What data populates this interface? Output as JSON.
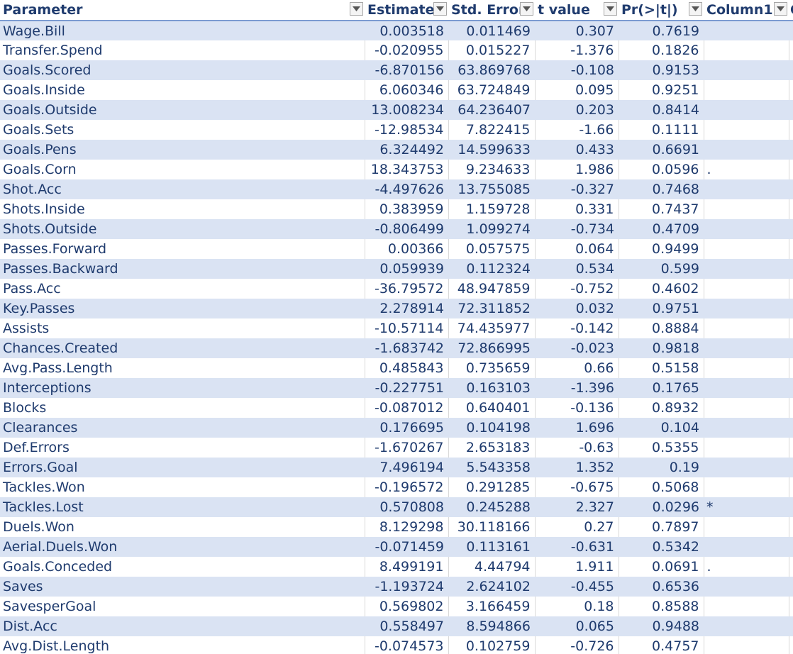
{
  "headers": [
    "Parameter",
    "Estimate",
    "Std. Error",
    "t value",
    "Pr(>|t|)",
    "Column1",
    "C"
  ],
  "rows": [
    {
      "parameter": "Wage.Bill",
      "estimate": "0.003518",
      "std_error": "0.011469",
      "t_value": "0.307",
      "p_value": "0.7619",
      "column1": ""
    },
    {
      "parameter": "Transfer.Spend",
      "estimate": "-0.020955",
      "std_error": "0.015227",
      "t_value": "-1.376",
      "p_value": "0.1826",
      "column1": ""
    },
    {
      "parameter": "Goals.Scored",
      "estimate": "-6.870156",
      "std_error": "63.869768",
      "t_value": "-0.108",
      "p_value": "0.9153",
      "column1": ""
    },
    {
      "parameter": "Goals.Inside",
      "estimate": "6.060346",
      "std_error": "63.724849",
      "t_value": "0.095",
      "p_value": "0.9251",
      "column1": ""
    },
    {
      "parameter": "Goals.Outside",
      "estimate": "13.008234",
      "std_error": "64.236407",
      "t_value": "0.203",
      "p_value": "0.8414",
      "column1": ""
    },
    {
      "parameter": "Goals.Sets",
      "estimate": "-12.98534",
      "std_error": "7.822415",
      "t_value": "-1.66",
      "p_value": "0.1111",
      "column1": ""
    },
    {
      "parameter": "Goals.Pens",
      "estimate": "6.324492",
      "std_error": "14.599633",
      "t_value": "0.433",
      "p_value": "0.6691",
      "column1": ""
    },
    {
      "parameter": "Goals.Corn",
      "estimate": "18.343753",
      "std_error": "9.234633",
      "t_value": "1.986",
      "p_value": "0.0596",
      "column1": "."
    },
    {
      "parameter": "Shot.Acc",
      "estimate": "-4.497626",
      "std_error": "13.755085",
      "t_value": "-0.327",
      "p_value": "0.7468",
      "column1": ""
    },
    {
      "parameter": "Shots.Inside",
      "estimate": "0.383959",
      "std_error": "1.159728",
      "t_value": "0.331",
      "p_value": "0.7437",
      "column1": ""
    },
    {
      "parameter": "Shots.Outside",
      "estimate": "-0.806499",
      "std_error": "1.099274",
      "t_value": "-0.734",
      "p_value": "0.4709",
      "column1": ""
    },
    {
      "parameter": "Passes.Forward",
      "estimate": "0.00366",
      "std_error": "0.057575",
      "t_value": "0.064",
      "p_value": "0.9499",
      "column1": ""
    },
    {
      "parameter": "Passes.Backward",
      "estimate": "0.059939",
      "std_error": "0.112324",
      "t_value": "0.534",
      "p_value": "0.599",
      "column1": ""
    },
    {
      "parameter": "Pass.Acc",
      "estimate": "-36.79572",
      "std_error": "48.947859",
      "t_value": "-0.752",
      "p_value": "0.4602",
      "column1": ""
    },
    {
      "parameter": "Key.Passes",
      "estimate": "2.278914",
      "std_error": "72.311852",
      "t_value": "0.032",
      "p_value": "0.9751",
      "column1": ""
    },
    {
      "parameter": "Assists",
      "estimate": "-10.57114",
      "std_error": "74.435977",
      "t_value": "-0.142",
      "p_value": "0.8884",
      "column1": ""
    },
    {
      "parameter": "Chances.Created",
      "estimate": "-1.683742",
      "std_error": "72.866995",
      "t_value": "-0.023",
      "p_value": "0.9818",
      "column1": ""
    },
    {
      "parameter": "Avg.Pass.Length",
      "estimate": "0.485843",
      "std_error": "0.735659",
      "t_value": "0.66",
      "p_value": "0.5158",
      "column1": ""
    },
    {
      "parameter": "Interceptions",
      "estimate": "-0.227751",
      "std_error": "0.163103",
      "t_value": "-1.396",
      "p_value": "0.1765",
      "column1": ""
    },
    {
      "parameter": "Blocks",
      "estimate": "-0.087012",
      "std_error": "0.640401",
      "t_value": "-0.136",
      "p_value": "0.8932",
      "column1": ""
    },
    {
      "parameter": "Clearances",
      "estimate": "0.176695",
      "std_error": "0.104198",
      "t_value": "1.696",
      "p_value": "0.104",
      "column1": ""
    },
    {
      "parameter": "Def.Errors",
      "estimate": "-1.670267",
      "std_error": "2.653183",
      "t_value": "-0.63",
      "p_value": "0.5355",
      "column1": ""
    },
    {
      "parameter": "Errors.Goal",
      "estimate": "7.496194",
      "std_error": "5.543358",
      "t_value": "1.352",
      "p_value": "0.19",
      "column1": ""
    },
    {
      "parameter": "Tackles.Won",
      "estimate": "-0.196572",
      "std_error": "0.291285",
      "t_value": "-0.675",
      "p_value": "0.5068",
      "column1": ""
    },
    {
      "parameter": "Tackles.Lost",
      "estimate": "0.570808",
      "std_error": "0.245288",
      "t_value": "2.327",
      "p_value": "0.0296",
      "column1": "*"
    },
    {
      "parameter": "Duels.Won",
      "estimate": "8.129298",
      "std_error": "30.118166",
      "t_value": "0.27",
      "p_value": "0.7897",
      "column1": ""
    },
    {
      "parameter": "Aerial.Duels.Won",
      "estimate": "-0.071459",
      "std_error": "0.113161",
      "t_value": "-0.631",
      "p_value": "0.5342",
      "column1": ""
    },
    {
      "parameter": "Goals.Conceded",
      "estimate": "8.499191",
      "std_error": "4.44794",
      "t_value": "1.911",
      "p_value": "0.0691",
      "column1": "."
    },
    {
      "parameter": "Saves",
      "estimate": "-1.193724",
      "std_error": "2.624102",
      "t_value": "-0.455",
      "p_value": "0.6536",
      "column1": ""
    },
    {
      "parameter": "SavesperGoal",
      "estimate": "0.569802",
      "std_error": "3.166459",
      "t_value": "0.18",
      "p_value": "0.8588",
      "column1": ""
    },
    {
      "parameter": "Dist.Acc",
      "estimate": "0.558497",
      "std_error": "8.594866",
      "t_value": "0.065",
      "p_value": "0.9488",
      "column1": ""
    },
    {
      "parameter": "Avg.Dist.Length",
      "estimate": "-0.074573",
      "std_error": "0.102759",
      "t_value": "-0.726",
      "p_value": "0.4757",
      "column1": ""
    }
  ],
  "colors": {
    "band": "#dae3f3",
    "text": "#1f3b6e",
    "header_rule": "#7b9bd1"
  },
  "icons": {
    "filter_dropdown": "chevron-down-icon"
  }
}
